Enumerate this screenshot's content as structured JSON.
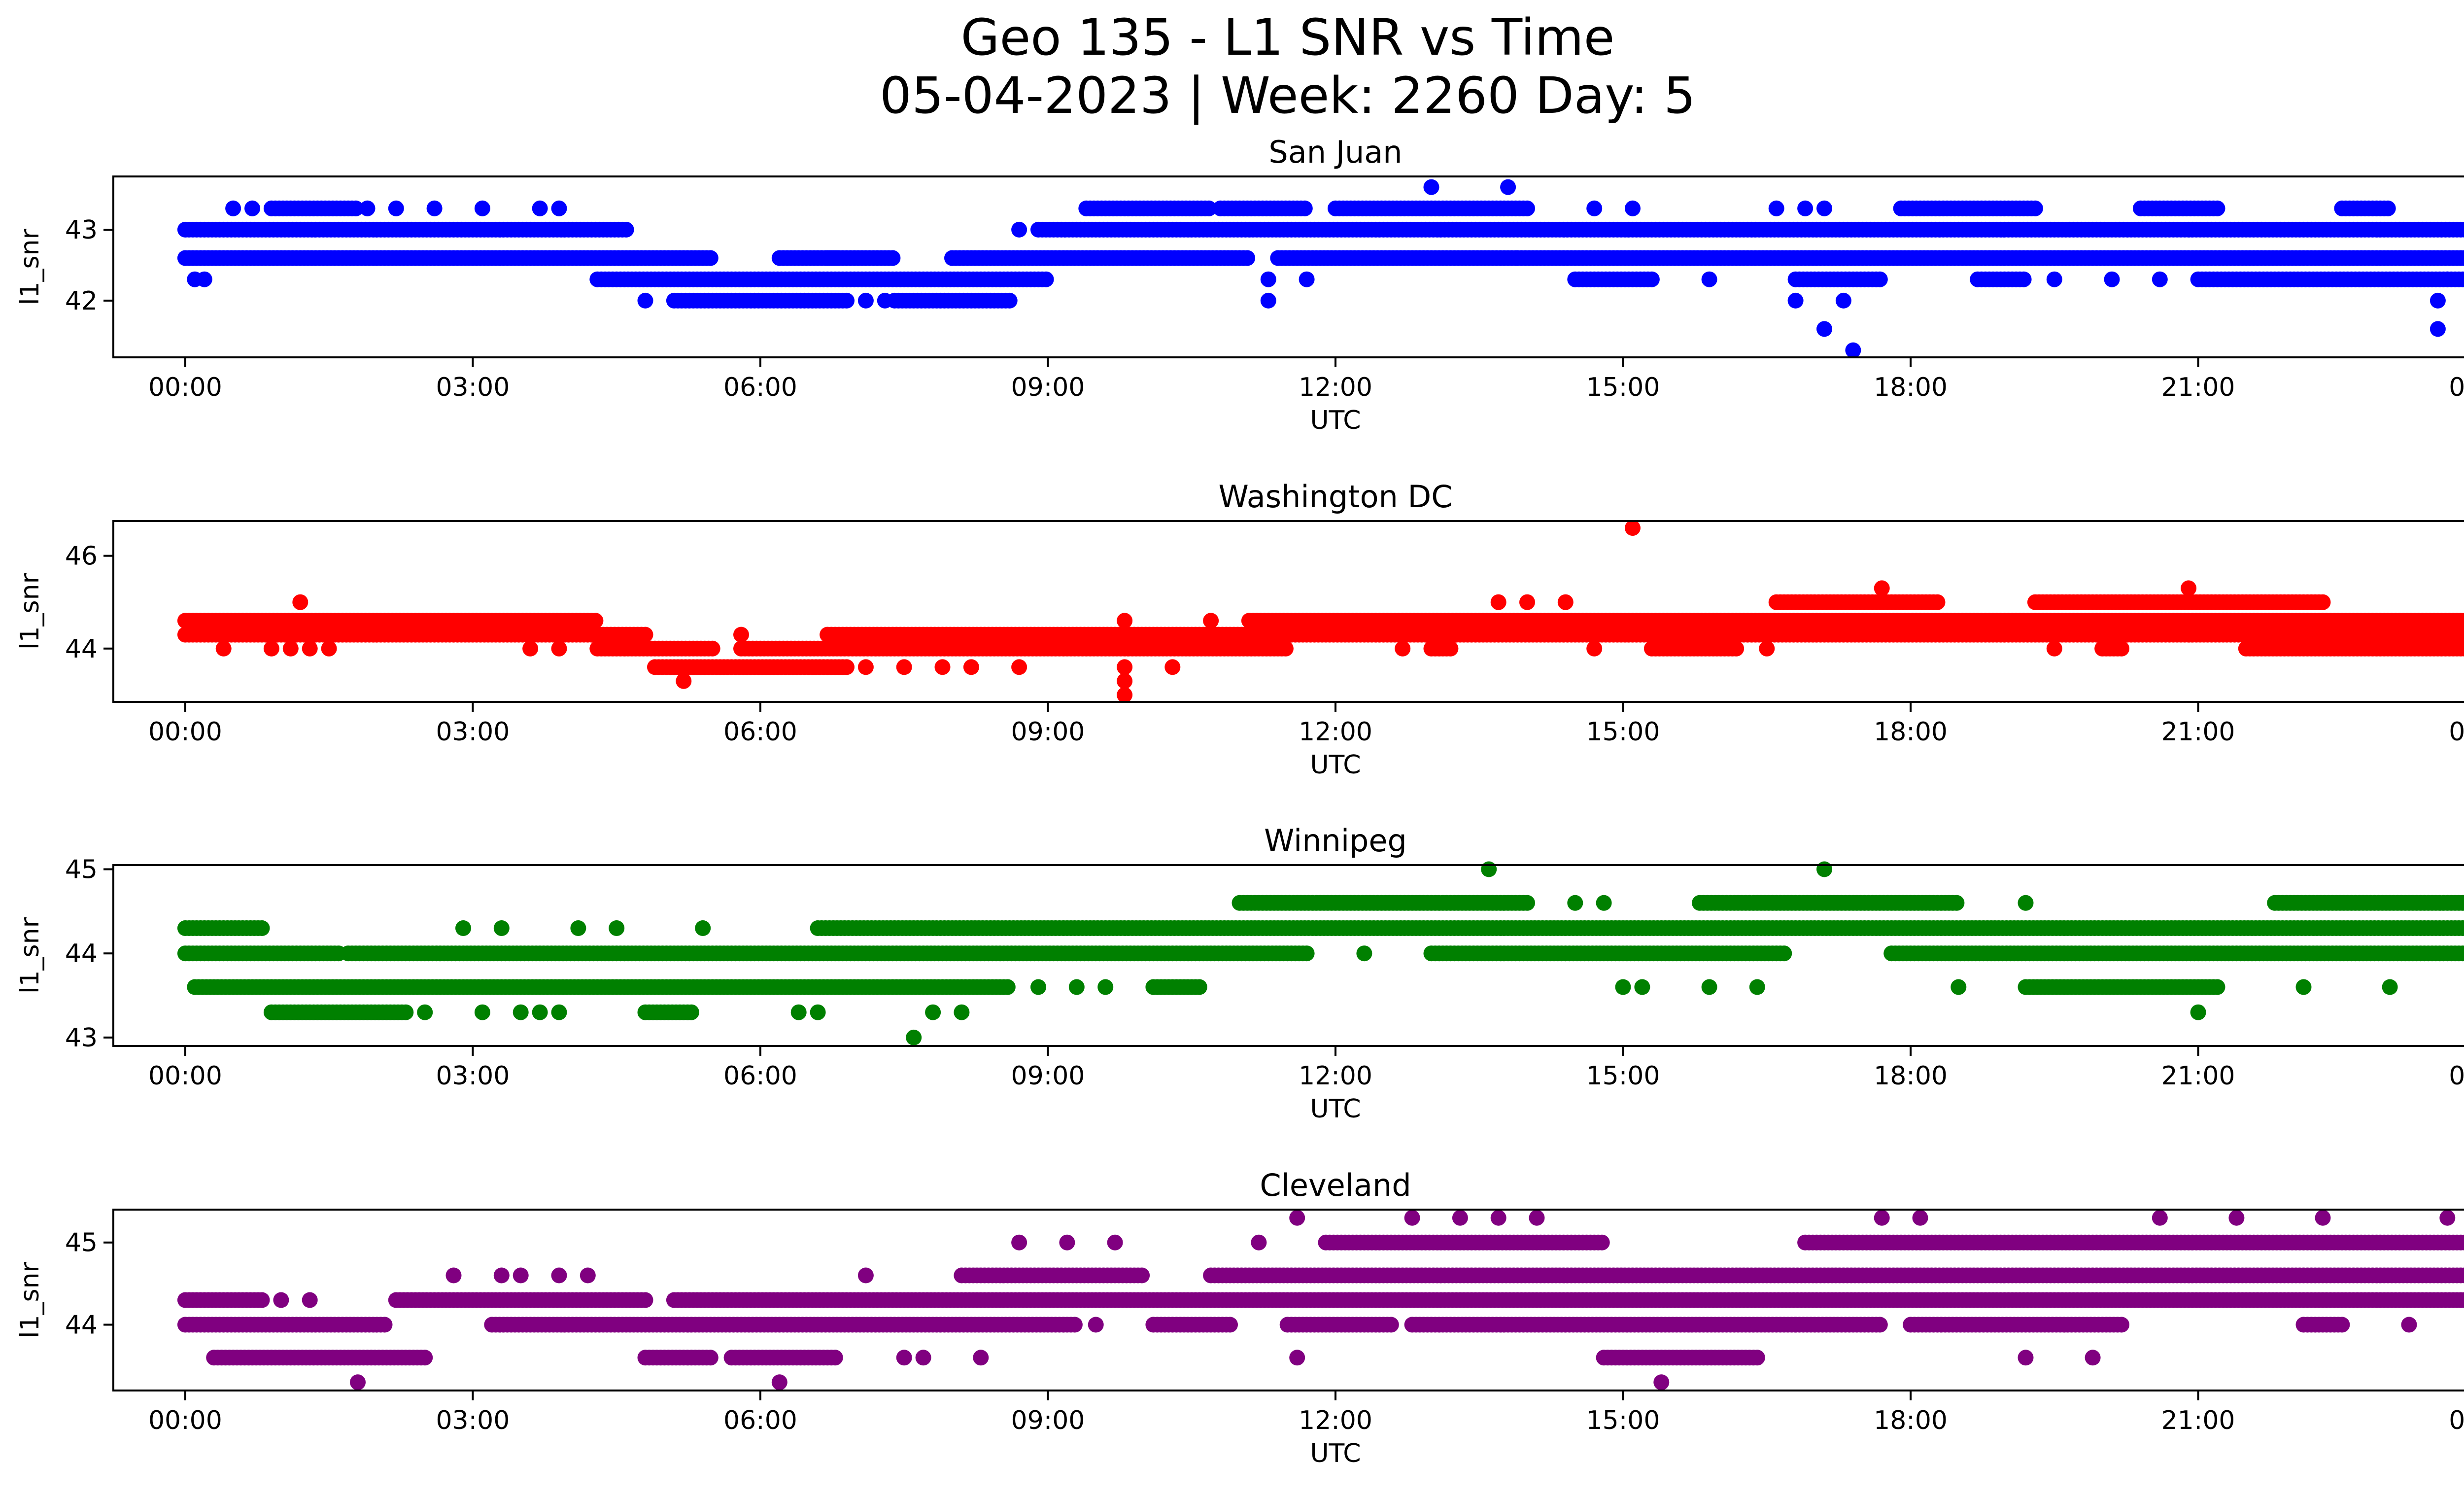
{
  "figure": {
    "title_line1": "Geo 135 - L1 SNR vs Time",
    "title_line2": "05-04-2023 | Week: 2260 Day: 5"
  },
  "chart_data": [
    {
      "type": "scatter",
      "title": "San Juan",
      "xlabel": "UTC",
      "ylabel": "l1_snr",
      "color": "#0000ff",
      "x_ticks": [
        "00:00",
        "03:00",
        "06:00",
        "09:00",
        "12:00",
        "15:00",
        "18:00",
        "21:00",
        "00:00"
      ],
      "xlim_hours": [
        -0.75,
        24.75
      ],
      "ylim": [
        41.2,
        43.75
      ],
      "y_ticks": [
        42,
        43
      ],
      "levels": [
        {
          "y": 43.0,
          "ranges": [
            [
              0,
              4.6
            ],
            [
              8.9,
              24
            ]
          ]
        },
        {
          "y": 42.6,
          "ranges": [
            [
              0,
              5.5
            ],
            [
              6.2,
              6.8
            ],
            [
              6.7,
              7.4
            ],
            [
              8.0,
              11.1
            ],
            [
              11.4,
              13.9
            ],
            [
              13.9,
              24
            ]
          ]
        },
        {
          "y": 42.3,
          "ranges": [
            [
              4.3,
              9.0
            ],
            [
              14.5,
              15.3
            ],
            [
              16.8,
              17.7
            ],
            [
              18.7,
              19.2
            ],
            [
              21.0,
              24
            ]
          ]
        },
        {
          "y": 42.0,
          "ranges": [
            [
              5.1,
              6.9
            ],
            [
              7.4,
              8.6
            ]
          ]
        },
        {
          "y": 43.3,
          "ranges": [
            [
              0.9,
              1.8
            ],
            [
              9.4,
              10.7
            ],
            [
              10.8,
              11.7
            ],
            [
              12.0,
              14.0
            ],
            [
              17.9,
              19.3
            ],
            [
              20.4,
              21.2
            ],
            [
              22.5,
              23.0
            ]
          ]
        }
      ],
      "points": [
        [
          0.1,
          42.3
        ],
        [
          0.2,
          42.3
        ],
        [
          0.5,
          43.3
        ],
        [
          0.7,
          43.3
        ],
        [
          1.9,
          43.3
        ],
        [
          2.2,
          43.3
        ],
        [
          2.6,
          43.3
        ],
        [
          3.1,
          43.3
        ],
        [
          3.7,
          43.3
        ],
        [
          3.9,
          43.3
        ],
        [
          4.8,
          42.0
        ],
        [
          7.1,
          42.0
        ],
        [
          7.3,
          42.0
        ],
        [
          8.7,
          43.0
        ],
        [
          11.3,
          42.3
        ],
        [
          11.3,
          42.0
        ],
        [
          11.7,
          42.3
        ],
        [
          13.0,
          43.6
        ],
        [
          13.8,
          43.6
        ],
        [
          14.7,
          43.3
        ],
        [
          15.1,
          43.3
        ],
        [
          15.9,
          42.3
        ],
        [
          16.6,
          43.3
        ],
        [
          16.9,
          43.3
        ],
        [
          17.1,
          43.3
        ],
        [
          16.8,
          42.0
        ],
        [
          17.1,
          41.6
        ],
        [
          17.3,
          42.0
        ],
        [
          17.4,
          41.3
        ],
        [
          19.5,
          42.3
        ],
        [
          20.1,
          42.3
        ],
        [
          20.6,
          42.3
        ],
        [
          23.6,
          42.3
        ],
        [
          23.5,
          42.0
        ],
        [
          23.5,
          41.6
        ]
      ]
    },
    {
      "type": "scatter",
      "title": "Washington DC",
      "xlabel": "UTC",
      "ylabel": "l1_snr",
      "color": "#ff0000",
      "x_ticks": [
        "00:00",
        "03:00",
        "06:00",
        "09:00",
        "12:00",
        "15:00",
        "18:00",
        "21:00",
        "00:00"
      ],
      "xlim_hours": [
        -0.75,
        24.75
      ],
      "ylim": [
        42.85,
        46.75
      ],
      "y_ticks": [
        44,
        46
      ],
      "levels": [
        {
          "y": 44.6,
          "ranges": [
            [
              0,
              4.3
            ],
            [
              11.1,
              24
            ]
          ]
        },
        {
          "y": 44.3,
          "ranges": [
            [
              0,
              4.8
            ],
            [
              6.7,
              24
            ]
          ]
        },
        {
          "y": 44.0,
          "ranges": [
            [
              4.3,
              5.5
            ],
            [
              5.8,
              11.5
            ],
            [
              13.0,
              13.2
            ],
            [
              15.3,
              16.2
            ],
            [
              20.0,
              20.2
            ],
            [
              21.5,
              24
            ]
          ]
        },
        {
          "y": 43.6,
          "ranges": [
            [
              4.9,
              6.9
            ]
          ]
        },
        {
          "y": 45.0,
          "ranges": [
            [
              16.6,
              18.3
            ],
            [
              19.3,
              22.3
            ]
          ]
        }
      ],
      "points": [
        [
          0.4,
          44.0
        ],
        [
          0.9,
          44.0
        ],
        [
          1.1,
          44.0
        ],
        [
          1.2,
          45.0
        ],
        [
          1.3,
          44.0
        ],
        [
          1.5,
          44.0
        ],
        [
          3.6,
          44.0
        ],
        [
          3.9,
          44.0
        ],
        [
          5.2,
          43.3
        ],
        [
          5.8,
          44.3
        ],
        [
          7.1,
          43.6
        ],
        [
          7.5,
          43.6
        ],
        [
          7.9,
          43.6
        ],
        [
          8.2,
          43.6
        ],
        [
          8.7,
          43.6
        ],
        [
          9.8,
          44.6
        ],
        [
          9.8,
          43.6
        ],
        [
          9.8,
          43.3
        ],
        [
          9.8,
          43.0
        ],
        [
          10.3,
          43.6
        ],
        [
          10.7,
          44.6
        ],
        [
          12.7,
          44.0
        ],
        [
          13.7,
          45.0
        ],
        [
          14.0,
          45.0
        ],
        [
          14.4,
          45.0
        ],
        [
          14.7,
          44.0
        ],
        [
          15.1,
          46.6
        ],
        [
          16.5,
          44.0
        ],
        [
          17.7,
          45.3
        ],
        [
          20.9,
          45.3
        ],
        [
          19.5,
          44.0
        ]
      ]
    },
    {
      "type": "scatter",
      "title": "Winnipeg",
      "xlabel": "UTC",
      "ylabel": "l1_snr",
      "color": "#008000",
      "x_ticks": [
        "00:00",
        "03:00",
        "06:00",
        "09:00",
        "12:00",
        "15:00",
        "18:00",
        "21:00",
        "00:00"
      ],
      "xlim_hours": [
        -0.75,
        24.75
      ],
      "ylim": [
        42.9,
        45.05
      ],
      "y_ticks": [
        43,
        44,
        45
      ],
      "levels": [
        {
          "y": 44.3,
          "ranges": [
            [
              0,
              0.8
            ],
            [
              6.6,
              24
            ]
          ]
        },
        {
          "y": 44.0,
          "ranges": [
            [
              0,
              1.6
            ],
            [
              1.7,
              11.7
            ],
            [
              13.0,
              16.7
            ],
            [
              17.8,
              24
            ]
          ]
        },
        {
          "y": 43.6,
          "ranges": [
            [
              0.1,
              8.6
            ],
            [
              10.1,
              10.6
            ],
            [
              19.2,
              21.2
            ]
          ]
        },
        {
          "y": 43.3,
          "ranges": [
            [
              0.9,
              2.3
            ],
            [
              4.8,
              5.3
            ]
          ]
        },
        {
          "y": 44.6,
          "ranges": [
            [
              11.0,
              14.0
            ],
            [
              15.8,
              18.5
            ],
            [
              21.8,
              24
            ]
          ]
        }
      ],
      "points": [
        [
          2.5,
          43.3
        ],
        [
          3.1,
          43.3
        ],
        [
          3.5,
          43.3
        ],
        [
          3.7,
          43.3
        ],
        [
          3.9,
          43.3
        ],
        [
          2.9,
          44.3
        ],
        [
          3.3,
          44.3
        ],
        [
          4.1,
          44.3
        ],
        [
          4.5,
          44.3
        ],
        [
          5.4,
          44.3
        ],
        [
          6.4,
          43.3
        ],
        [
          6.6,
          43.3
        ],
        [
          7.6,
          43.0
        ],
        [
          7.8,
          43.3
        ],
        [
          8.1,
          43.3
        ],
        [
          8.9,
          43.6
        ],
        [
          9.3,
          43.6
        ],
        [
          9.6,
          43.6
        ],
        [
          12.3,
          44.0
        ],
        [
          13.6,
          45.0
        ],
        [
          14.5,
          44.6
        ],
        [
          14.8,
          44.6
        ],
        [
          15.0,
          43.6
        ],
        [
          15.2,
          43.6
        ],
        [
          15.9,
          43.6
        ],
        [
          16.4,
          43.6
        ],
        [
          17.1,
          45.0
        ],
        [
          18.5,
          43.6
        ],
        [
          19.2,
          44.6
        ],
        [
          21.0,
          43.3
        ],
        [
          22.1,
          43.6
        ],
        [
          23.0,
          43.6
        ]
      ]
    },
    {
      "type": "scatter",
      "title": "Cleveland",
      "xlabel": "UTC",
      "ylabel": "l1_snr",
      "color": "#800080",
      "x_ticks": [
        "00:00",
        "03:00",
        "06:00",
        "09:00",
        "12:00",
        "15:00",
        "18:00",
        "21:00",
        "00:00"
      ],
      "xlim_hours": [
        -0.75,
        24.75
      ],
      "ylim": [
        43.2,
        45.4
      ],
      "y_ticks": [
        44,
        45
      ],
      "levels": [
        {
          "y": 44.6,
          "ranges": [
            [
              8.1,
              10.0
            ],
            [
              10.7,
              24
            ]
          ]
        },
        {
          "y": 44.3,
          "ranges": [
            [
              0,
              0.8
            ],
            [
              2.2,
              4.8
            ],
            [
              5.1,
              24
            ]
          ]
        },
        {
          "y": 44.0,
          "ranges": [
            [
              0,
              2.1
            ],
            [
              3.2,
              9.3
            ],
            [
              10.1,
              10.9
            ],
            [
              11.5,
              12.6
            ],
            [
              12.8,
              17.7
            ],
            [
              18.0,
              20.2
            ],
            [
              22.1,
              22.5
            ]
          ]
        },
        {
          "y": 43.6,
          "ranges": [
            [
              0.3,
              2.5
            ],
            [
              4.8,
              5.5
            ],
            [
              5.7,
              6.8
            ],
            [
              14.8,
              16.4
            ]
          ]
        },
        {
          "y": 45.0,
          "ranges": [
            [
              11.9,
              14.8
            ],
            [
              16.9,
              24
            ]
          ]
        }
      ],
      "points": [
        [
          1.0,
          44.3
        ],
        [
          1.3,
          44.3
        ],
        [
          1.8,
          43.3
        ],
        [
          2.8,
          44.6
        ],
        [
          3.3,
          44.6
        ],
        [
          3.5,
          44.6
        ],
        [
          3.9,
          44.6
        ],
        [
          4.2,
          44.6
        ],
        [
          7.1,
          44.6
        ],
        [
          7.5,
          43.6
        ],
        [
          7.7,
          43.6
        ],
        [
          8.3,
          43.6
        ],
        [
          6.2,
          43.3
        ],
        [
          8.7,
          45.0
        ],
        [
          9.2,
          45.0
        ],
        [
          9.7,
          45.0
        ],
        [
          9.5,
          44.0
        ],
        [
          11.2,
          45.0
        ],
        [
          11.6,
          45.3
        ],
        [
          12.8,
          45.3
        ],
        [
          13.3,
          45.3
        ],
        [
          13.7,
          45.3
        ],
        [
          14.1,
          45.3
        ],
        [
          11.6,
          43.6
        ],
        [
          15.4,
          43.3
        ],
        [
          16.8,
          44.0
        ],
        [
          17.7,
          45.3
        ],
        [
          18.1,
          45.3
        ],
        [
          19.2,
          43.6
        ],
        [
          19.9,
          43.6
        ],
        [
          20.6,
          45.3
        ],
        [
          21.4,
          45.3
        ],
        [
          22.3,
          45.3
        ],
        [
          23.6,
          45.3
        ],
        [
          23.2,
          44.0
        ],
        [
          23.9,
          44.0
        ]
      ]
    }
  ]
}
